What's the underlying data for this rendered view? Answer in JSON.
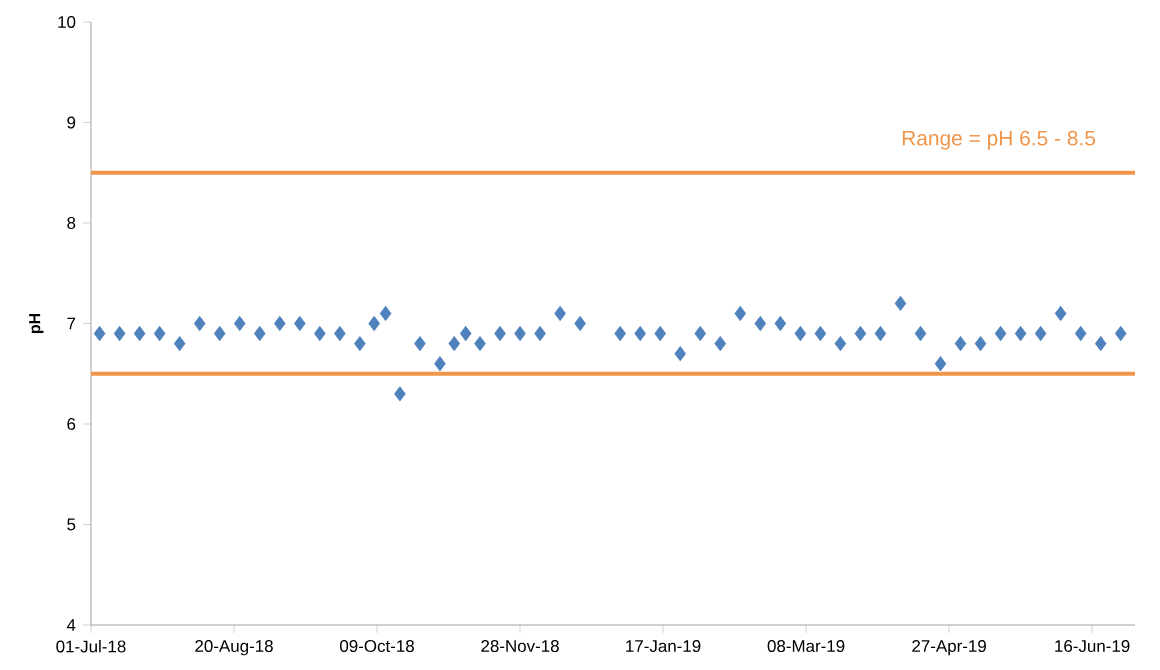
{
  "chart_data": {
    "type": "scatter",
    "ylabel": "pH",
    "x": [
      "2018-07-04",
      "2018-07-11",
      "2018-07-18",
      "2018-07-25",
      "2018-08-01",
      "2018-08-08",
      "2018-08-15",
      "2018-08-22",
      "2018-08-29",
      "2018-09-05",
      "2018-09-12",
      "2018-09-19",
      "2018-09-26",
      "2018-10-03",
      "2018-10-08",
      "2018-10-12",
      "2018-10-17",
      "2018-10-24",
      "2018-10-31",
      "2018-11-05",
      "2018-11-09",
      "2018-11-14",
      "2018-11-21",
      "2018-11-28",
      "2018-12-05",
      "2018-12-12",
      "2018-12-19",
      "2019-01-02",
      "2019-01-09",
      "2019-01-16",
      "2019-01-23",
      "2019-01-30",
      "2019-02-06",
      "2019-02-13",
      "2019-02-20",
      "2019-02-27",
      "2019-03-06",
      "2019-03-13",
      "2019-03-20",
      "2019-03-27",
      "2019-04-03",
      "2019-04-10",
      "2019-04-17",
      "2019-04-24",
      "2019-05-01",
      "2019-05-08",
      "2019-05-15",
      "2019-05-22",
      "2019-05-29",
      "2019-06-05",
      "2019-06-12",
      "2019-06-19",
      "2019-06-26"
    ],
    "values": [
      6.9,
      6.9,
      6.9,
      6.9,
      6.8,
      7.0,
      6.9,
      7.0,
      6.9,
      7.0,
      7.0,
      6.9,
      6.9,
      6.8,
      7.0,
      7.1,
      6.3,
      6.8,
      6.6,
      6.8,
      6.9,
      6.8,
      6.9,
      6.9,
      6.9,
      7.1,
      7.0,
      6.9,
      6.9,
      6.9,
      6.7,
      6.9,
      6.8,
      7.1,
      7.0,
      7.0,
      6.9,
      6.9,
      6.8,
      6.9,
      6.9,
      7.2,
      6.9,
      6.6,
      6.8,
      6.8,
      6.9,
      6.9,
      6.9,
      7.1,
      6.9,
      6.8,
      6.9
    ],
    "color": "#4f81bd",
    "marker": "diamond",
    "xlim": [
      "2018-07-01",
      "2019-07-01"
    ],
    "xticks": [
      {
        "value": "2018-07-01",
        "label": "01-Jul-18"
      },
      {
        "value": "2018-08-20",
        "label": "20-Aug-18"
      },
      {
        "value": "2018-10-09",
        "label": "09-Oct-18"
      },
      {
        "value": "2018-11-28",
        "label": "28-Nov-18"
      },
      {
        "value": "2019-01-17",
        "label": "17-Jan-19"
      },
      {
        "value": "2019-03-08",
        "label": "08-Mar-19"
      },
      {
        "value": "2019-04-27",
        "label": "27-Apr-19"
      },
      {
        "value": "2019-06-16",
        "label": "16-Jun-19"
      }
    ],
    "ylim": [
      4,
      10
    ],
    "yticks": [
      4,
      5,
      6,
      7,
      8,
      9,
      10
    ],
    "ref_lines": [
      {
        "axis": "y",
        "value": 8.5,
        "label": "Range = pH 6.5 - 8.5",
        "color": "#f0954a"
      },
      {
        "axis": "y",
        "value": 6.5,
        "color": "#f0954a"
      }
    ]
  }
}
